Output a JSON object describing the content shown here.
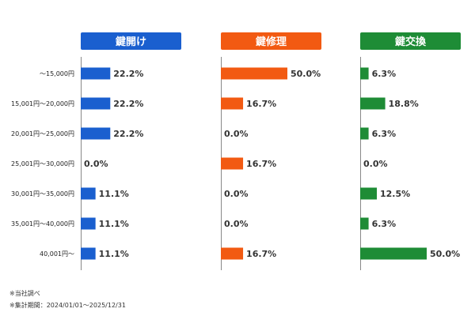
{
  "chart_data": {
    "type": "bar",
    "orientation": "horizontal",
    "unit": "%",
    "categories": [
      "～15,000円",
      "15,001円～20,000円",
      "20,001円～25,000円",
      "25,001円～30,000円",
      "30,001円～35,000円",
      "35,001円～40,000円",
      "40,001円～"
    ],
    "series": [
      {
        "name": "鍵開け",
        "color": "#1a5fcf",
        "values": [
          22.2,
          22.2,
          22.2,
          0.0,
          11.1,
          11.1,
          11.1
        ]
      },
      {
        "name": "鍵修理",
        "color": "#f25a12",
        "values": [
          50.0,
          16.7,
          0.0,
          16.7,
          0.0,
          0.0,
          16.7
        ]
      },
      {
        "name": "鍵交換",
        "color": "#1e8c36",
        "values": [
          6.3,
          18.8,
          6.3,
          0.0,
          12.5,
          6.3,
          50.0
        ]
      }
    ],
    "xlim": [
      0,
      50
    ],
    "grid": false
  },
  "notes": [
    "※当社調べ",
    "※集計期間：2024/01/01～2025/12/31"
  ]
}
